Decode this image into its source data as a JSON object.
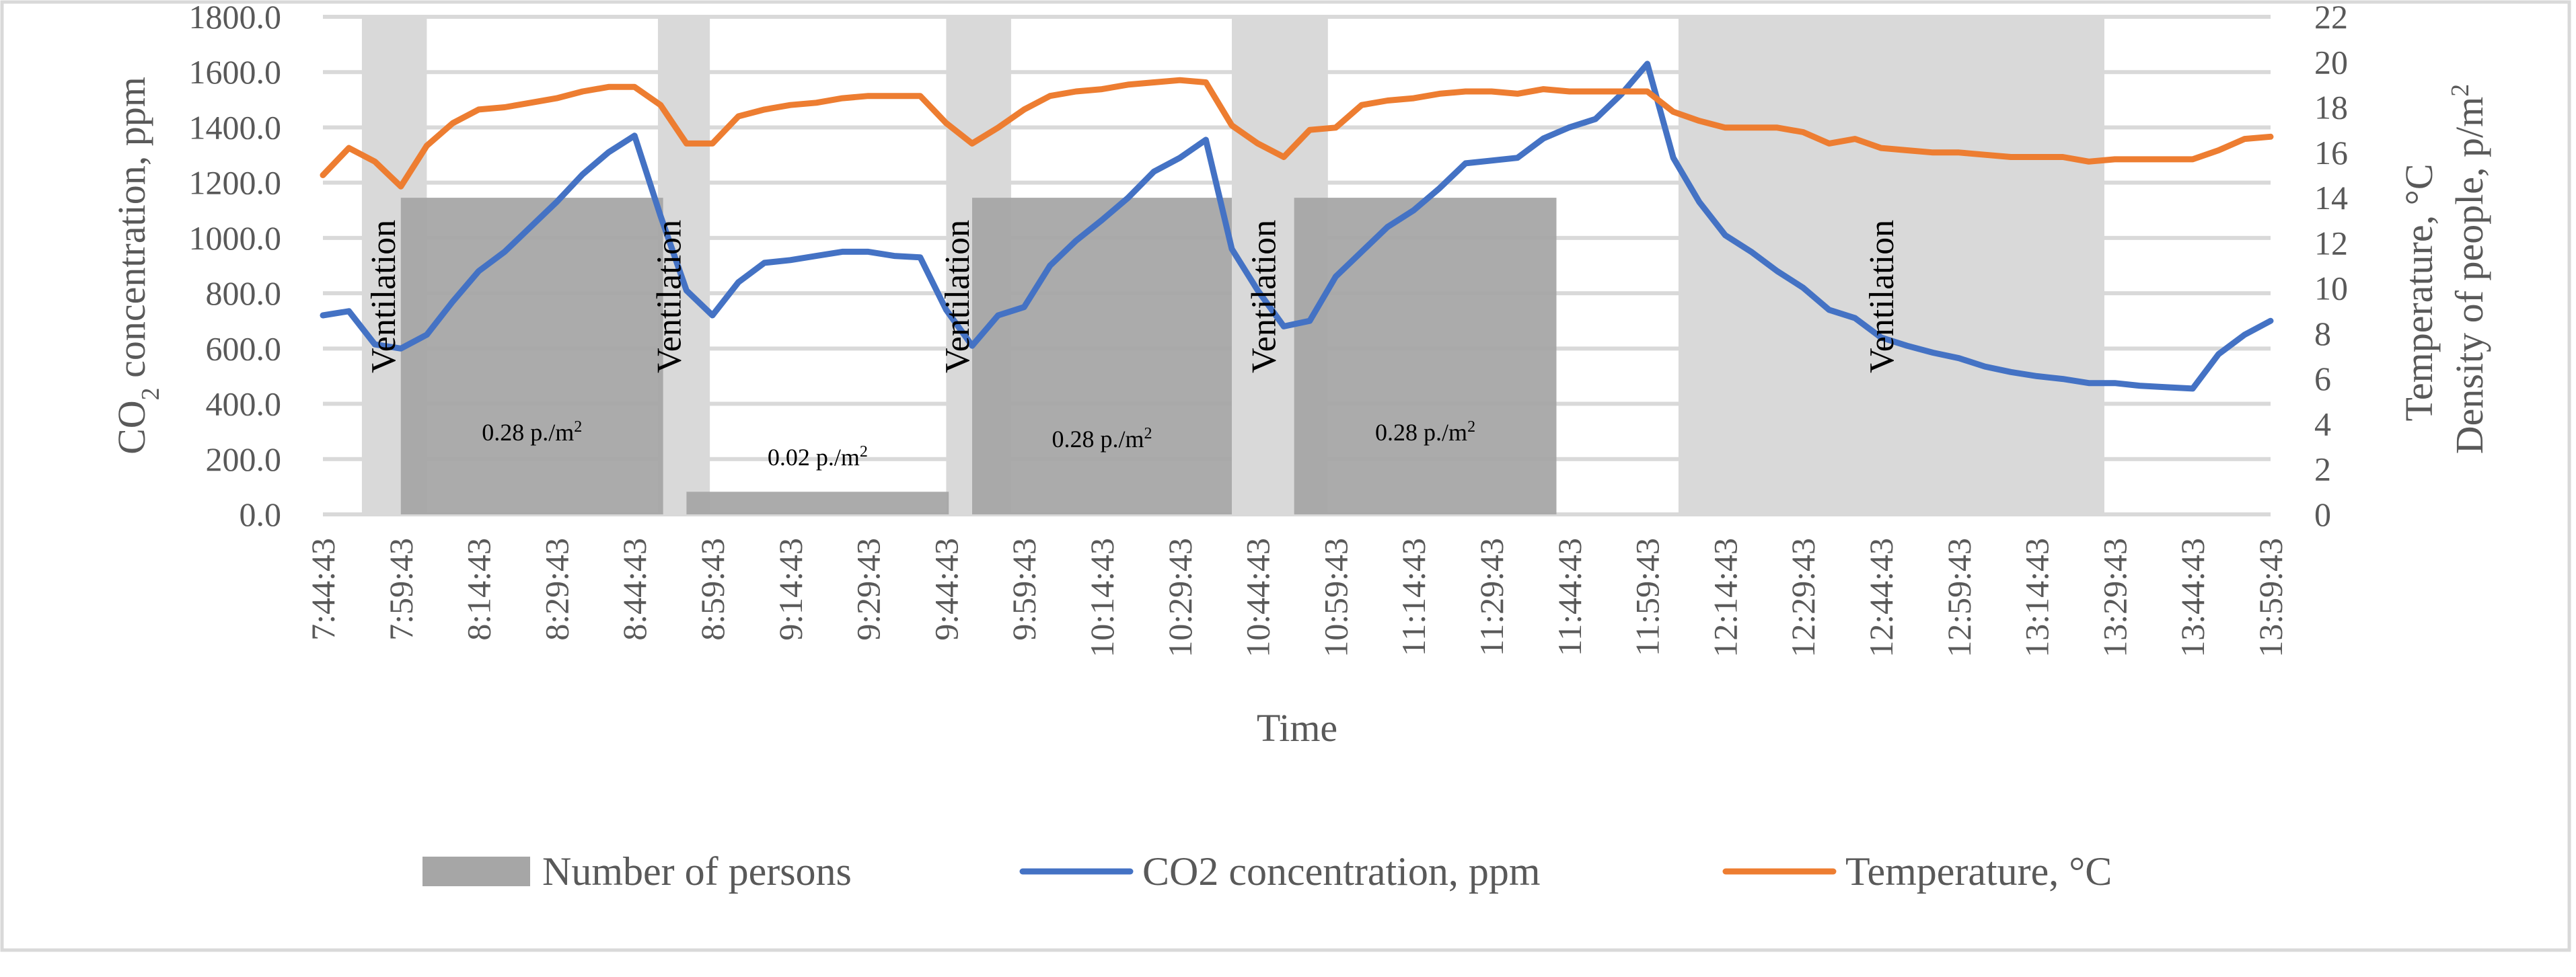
{
  "chart_data": {
    "type": "line",
    "title": "",
    "xlabel": "Time",
    "ylabel_left": "CO2 concentration, ppm",
    "ylabel_left_parts": {
      "main": "CO",
      "sub": "2",
      "rest": " concentration, ppm"
    },
    "ylabel_right": [
      "Temperature, °C",
      "Density of people, p/m2"
    ],
    "ylabel_right_density": {
      "main": "Density of people, p/m",
      "sup": "2"
    },
    "ylim_left": [
      0,
      1800
    ],
    "ylim_right": [
      0,
      22
    ],
    "y_left_ticks": [
      "0.0",
      "200.0",
      "400.0",
      "600.0",
      "800.0",
      "1000.0",
      "1200.0",
      "1400.0",
      "1600.0",
      "1800.0"
    ],
    "y_right_ticks": [
      "0",
      "2",
      "4",
      "6",
      "8",
      "10",
      "12",
      "14",
      "16",
      "18",
      "20",
      "22"
    ],
    "x_start_minute": 464.7167,
    "x_end_minute": 839.7167,
    "x_tick_labels": [
      "7:44:43",
      "7:59:43",
      "8:14:43",
      "8:29:43",
      "8:44:43",
      "8:59:43",
      "9:14:43",
      "9:29:43",
      "9:44:43",
      "9:59:43",
      "10:14:43",
      "10:29:43",
      "10:44:43",
      "10:59:43",
      "11:14:43",
      "11:29:43",
      "11:44:43",
      "11:59:43",
      "12:14:43",
      "12:29:43",
      "12:44:43",
      "12:59:43",
      "13:14:43",
      "13:29:43",
      "13:44:43",
      "13:59:43"
    ],
    "ventilation_periods": [
      [
        7.5,
        20
      ],
      [
        64.5,
        74.5
      ],
      [
        120,
        132.5
      ],
      [
        175,
        193.5
      ],
      [
        261,
        343
      ]
    ],
    "ventilation_label": "Ventilation",
    "ventilation_label_minutes": [
      11.5,
      66.5,
      122,
      181,
      300
    ],
    "occupancy_blocks": [
      {
        "start": 15,
        "end": 65.5,
        "value": 14,
        "label": "0.28 p./m",
        "sup": "2"
      },
      {
        "start": 70,
        "end": 120.5,
        "value": 1,
        "label": "0.02 p./m",
        "sup": "2"
      },
      {
        "start": 125,
        "end": 175,
        "value": 14,
        "label": "0.28 p./m",
        "sup": "2"
      },
      {
        "start": 187,
        "end": 237.5,
        "value": 14,
        "label": "0.28 p./m",
        "sup": "2"
      }
    ],
    "series": [
      {
        "name": "CO2 concentration, ppm",
        "axis": "left",
        "color": "#4472c4",
        "x": [
          0,
          5,
          10,
          15,
          20,
          25,
          30,
          35,
          40,
          45,
          50,
          55,
          60,
          65,
          70,
          75,
          80,
          85,
          90,
          95,
          100,
          105,
          110,
          115,
          120,
          125,
          130,
          135,
          140,
          145,
          150,
          155,
          160,
          165,
          170,
          175,
          180,
          185,
          190,
          195,
          200,
          205,
          210,
          215,
          220,
          225,
          230,
          235,
          240,
          245,
          250,
          255,
          260,
          265,
          270,
          275,
          280,
          285,
          290,
          295,
          300,
          305,
          310,
          315,
          320,
          325,
          330,
          335,
          340,
          345,
          350,
          355,
          360,
          365,
          370,
          375
        ],
        "values": [
          720,
          735,
          615,
          600,
          650,
          770,
          880,
          950,
          1040,
          1130,
          1230,
          1310,
          1370,
          1080,
          810,
          720,
          840,
          910,
          920,
          935,
          950,
          950,
          935,
          930,
          740,
          610,
          720,
          750,
          900,
          990,
          1065,
          1145,
          1240,
          1290,
          1355,
          960,
          810,
          680,
          700,
          860,
          950,
          1040,
          1100,
          1180,
          1270,
          1280,
          1290,
          1360,
          1400,
          1430,
          1520,
          1630,
          1290,
          1130,
          1010,
          950,
          880,
          820,
          740,
          710,
          640,
          610,
          585,
          565,
          535,
          515,
          500,
          490,
          475,
          475,
          465,
          460,
          455,
          580,
          650,
          700
        ]
      },
      {
        "name": "Temperature, °C",
        "axis": "right",
        "color": "#ed7d31",
        "x": [
          0,
          5,
          10,
          15,
          20,
          25,
          30,
          35,
          40,
          45,
          50,
          55,
          60,
          65,
          70,
          75,
          80,
          85,
          90,
          95,
          100,
          105,
          110,
          115,
          120,
          125,
          130,
          135,
          140,
          145,
          150,
          155,
          160,
          165,
          170,
          175,
          180,
          185,
          190,
          195,
          200,
          205,
          210,
          215,
          220,
          225,
          230,
          235,
          240,
          245,
          250,
          255,
          260,
          265,
          270,
          275,
          280,
          285,
          290,
          295,
          300,
          305,
          310,
          315,
          320,
          325,
          330,
          335,
          340,
          345,
          350,
          355,
          360,
          365,
          370,
          375
        ],
        "values": [
          15,
          16.2,
          15.6,
          14.5,
          16.3,
          17.3,
          17.9,
          18.0,
          18.2,
          18.4,
          18.7,
          18.9,
          18.9,
          18.1,
          16.4,
          16.4,
          17.6,
          17.9,
          18.1,
          18.2,
          18.4,
          18.5,
          18.5,
          18.5,
          17.3,
          16.4,
          17.1,
          17.9,
          18.5,
          18.7,
          18.8,
          19.0,
          19.1,
          19.2,
          19.1,
          17.2,
          16.4,
          15.8,
          17.0,
          17.1,
          18.1,
          18.3,
          18.4,
          18.6,
          18.7,
          18.7,
          18.6,
          18.8,
          18.7,
          18.7,
          18.7,
          18.7,
          17.8,
          17.4,
          17.1,
          17.1,
          17.1,
          16.9,
          16.4,
          16.6,
          16.2,
          16.1,
          16.0,
          16.0,
          15.9,
          15.8,
          15.8,
          15.8,
          15.6,
          15.7,
          15.7,
          15.7,
          15.7,
          16.1,
          16.6,
          16.7
        ]
      }
    ],
    "legend": [
      {
        "type": "box",
        "label": "Number of persons",
        "color": "#a6a6a6"
      },
      {
        "type": "line",
        "label": "CO2 concentration, ppm",
        "color": "#4472c4"
      },
      {
        "type": "line",
        "label": "Temperature, °C",
        "color": "#ed7d31"
      }
    ],
    "legend_position": "bottom",
    "grid": true,
    "colors": {
      "ventilation_band": "#d9d9d9",
      "occupancy_fill": "#a6a6a6",
      "gridline": "#d9d9d9",
      "text": "#595959"
    }
  }
}
